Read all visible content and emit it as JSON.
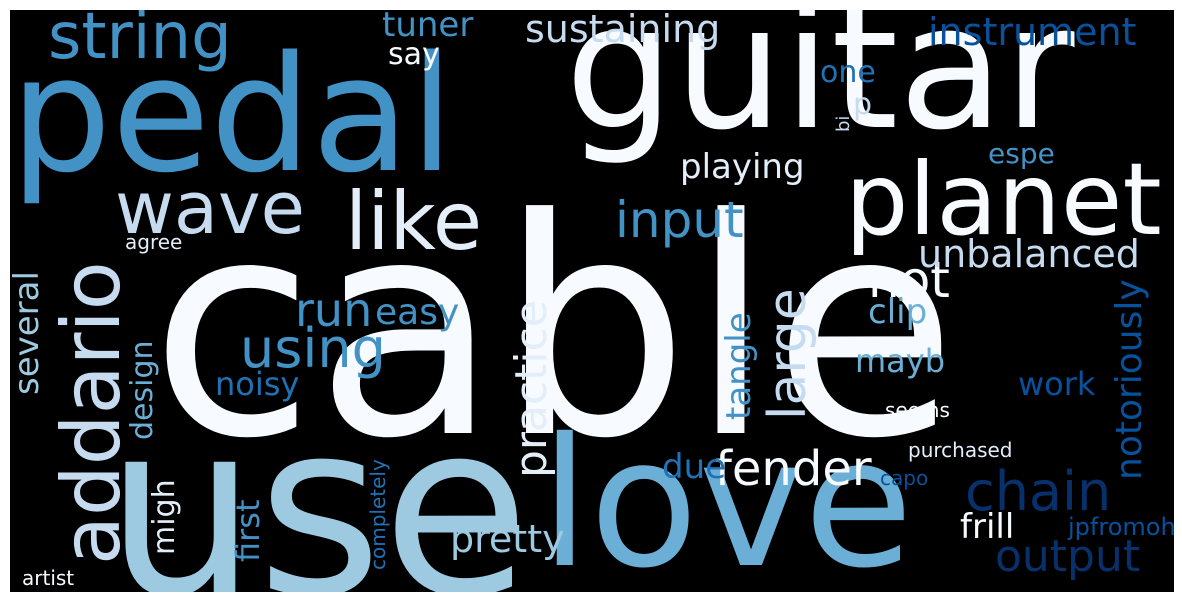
{
  "words": {
    "cable": "cable",
    "use": "use",
    "guitar": "guitar",
    "pedal": "pedal",
    "love": "love",
    "planet": "planet",
    "addario": "addario",
    "wave": "wave",
    "like": "like",
    "string": "string",
    "fender": "fender",
    "output": "output",
    "chain": "chain",
    "input": "input",
    "using": "using",
    "large": "large",
    "not": "not",
    "unbalanced": "unbalanced",
    "practice": "practice",
    "sustaining": "sustaining",
    "run": "run",
    "instrument": "instrument",
    "pretty": "pretty",
    "notoriously": "notoriously",
    "tuner": "tuner",
    "playing": "playing",
    "easy": "easy",
    "clip": "clip",
    "frill": "frill",
    "noisy": "noisy",
    "mayb": "mayb",
    "work": "work",
    "first": "first",
    "design": "design",
    "several": "several",
    "tangle": "tangle",
    "due": "due",
    "migh": "migh",
    "espe": "espe",
    "one": "one",
    "say": "say",
    "p": "p",
    "jpfromoh": "jpfromoh",
    "seems": "seems",
    "purchased": "purchased",
    "artist": "artist",
    "completely": "completely",
    "agree": "agree",
    "capo": "capo",
    "bi": "bi"
  }
}
